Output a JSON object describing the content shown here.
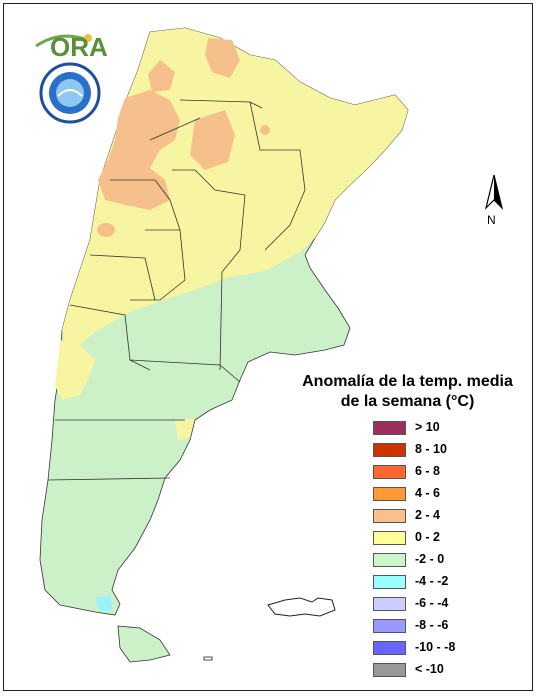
{
  "logo": {
    "text": "ORA"
  },
  "north_arrow": {
    "label": "N"
  },
  "legend": {
    "title_line1": "Anomalía de la temp. media",
    "title_line2": "de la semana (°C)",
    "items": [
      {
        "label": "> 10",
        "color": "#9c2f5e"
      },
      {
        "label": "8 - 10",
        "color": "#cc3300"
      },
      {
        "label": "6 - 8",
        "color": "#ff6633"
      },
      {
        "label": "4 - 6",
        "color": "#ff9933"
      },
      {
        "label": "2 - 4",
        "color": "#f9c08c"
      },
      {
        "label": "0 - 2",
        "color": "#ffff99"
      },
      {
        "label": "-2 - 0",
        "color": "#ccf5cc"
      },
      {
        "label": "-4 - -2",
        "color": "#99ffff"
      },
      {
        "label": "-6 - -4",
        "color": "#ccccff"
      },
      {
        "label": "-8 - -6",
        "color": "#9999ff"
      },
      {
        "label": "-10 - -8",
        "color": "#6666ff"
      },
      {
        "label": "< -10",
        "color": "#999999"
      }
    ]
  },
  "colors": {
    "warm_2_4": "#f5c08c",
    "warm_0_2": "#f8f5a2",
    "cool_m2_0": "#ccf0c8",
    "cool_m4_m2": "#99f3ff",
    "hot_4_6": "#f59a3a"
  }
}
